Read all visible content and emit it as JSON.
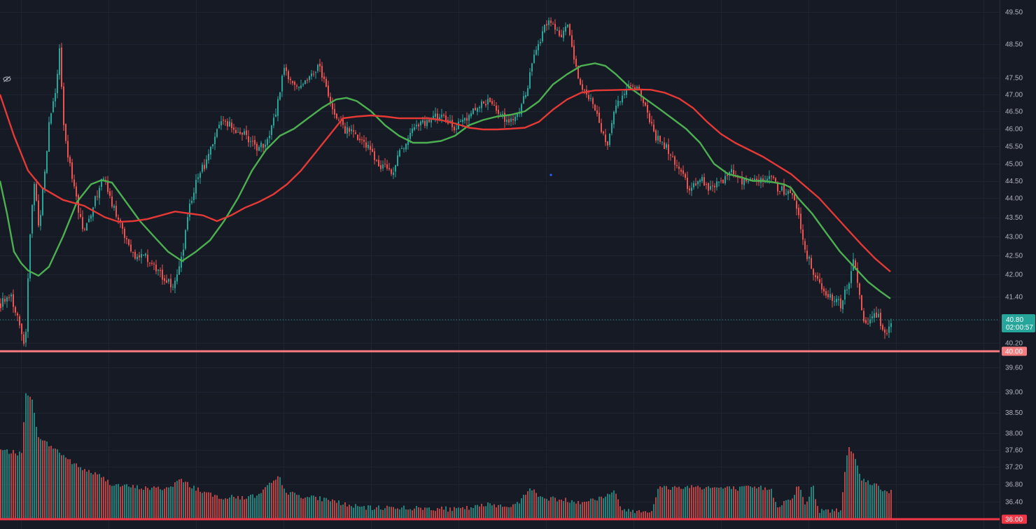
{
  "chart_data": {
    "type": "candlestick",
    "price_axis": {
      "tick_labels": [
        "49.50",
        "48.50",
        "47.50",
        "47.00",
        "46.50",
        "46.00",
        "45.50",
        "45.00",
        "44.50",
        "44.00",
        "43.50",
        "43.00",
        "42.50",
        "42.00",
        "41.40",
        "40.80",
        "40.20",
        "39.60",
        "39.00",
        "38.50",
        "38.00",
        "37.60",
        "37.20",
        "36.80",
        "36.40",
        "36.00"
      ],
      "ylim": [
        35.85,
        49.6
      ]
    },
    "last_price": {
      "value": "40.80",
      "countdown": "02:00:57",
      "color": "#26a69a"
    },
    "horizontal_lines": [
      {
        "value": 40.0,
        "label": "40.00",
        "color": "#f77c80"
      },
      {
        "value": 36.0,
        "label": "36.00",
        "color": "#f23645"
      }
    ],
    "price_path": [
      [
        0,
        41.2
      ],
      [
        15,
        41.4
      ],
      [
        30,
        40.4
      ],
      [
        35,
        40.05
      ],
      [
        40,
        42.5
      ],
      [
        48,
        44.5
      ],
      [
        55,
        43.2
      ],
      [
        70,
        46.3
      ],
      [
        78,
        47.0
      ],
      [
        84,
        48.3
      ],
      [
        90,
        46.0
      ],
      [
        100,
        44.8
      ],
      [
        110,
        43.8
      ],
      [
        120,
        43.1
      ],
      [
        130,
        43.6
      ],
      [
        140,
        44.3
      ],
      [
        148,
        44.6
      ],
      [
        158,
        43.8
      ],
      [
        170,
        43.5
      ],
      [
        180,
        42.8
      ],
      [
        192,
        42.4
      ],
      [
        205,
        42.6
      ],
      [
        215,
        42.3
      ],
      [
        228,
        42.0
      ],
      [
        240,
        41.8
      ],
      [
        250,
        41.7
      ],
      [
        260,
        42.6
      ],
      [
        270,
        43.8
      ],
      [
        280,
        44.6
      ],
      [
        292,
        45.0
      ],
      [
        305,
        45.8
      ],
      [
        318,
        46.2
      ],
      [
        335,
        46.0
      ],
      [
        350,
        45.8
      ],
      [
        365,
        45.4
      ],
      [
        380,
        45.6
      ],
      [
        392,
        46.4
      ],
      [
        405,
        47.8
      ],
      [
        418,
        47.3
      ],
      [
        430,
        47.2
      ],
      [
        445,
        47.6
      ],
      [
        455,
        47.9
      ],
      [
        465,
        47.2
      ],
      [
        478,
        46.4
      ],
      [
        490,
        46.0
      ],
      [
        505,
        45.9
      ],
      [
        520,
        45.6
      ],
      [
        540,
        45.0
      ],
      [
        560,
        44.8
      ],
      [
        575,
        45.5
      ],
      [
        590,
        46.1
      ],
      [
        610,
        46.2
      ],
      [
        630,
        46.4
      ],
      [
        650,
        46.0
      ],
      [
        665,
        46.3
      ],
      [
        680,
        46.6
      ],
      [
        695,
        46.8
      ],
      [
        710,
        46.5
      ],
      [
        725,
        46.1
      ],
      [
        740,
        46.4
      ],
      [
        752,
        47.2
      ],
      [
        760,
        48.0
      ],
      [
        770,
        48.6
      ],
      [
        780,
        49.2
      ],
      [
        792,
        49.0
      ],
      [
        800,
        48.6
      ],
      [
        808,
        49.2
      ],
      [
        815,
        48.5
      ],
      [
        825,
        47.6
      ],
      [
        835,
        47.0
      ],
      [
        845,
        46.8
      ],
      [
        857,
        46.0
      ],
      [
        867,
        45.6
      ],
      [
        878,
        46.7
      ],
      [
        890,
        47.0
      ],
      [
        902,
        47.3
      ],
      [
        912,
        47.1
      ],
      [
        925,
        46.3
      ],
      [
        935,
        45.8
      ],
      [
        945,
        45.6
      ],
      [
        957,
        45.3
      ],
      [
        970,
        44.8
      ],
      [
        985,
        44.2
      ],
      [
        1000,
        44.6
      ],
      [
        1015,
        44.2
      ],
      [
        1030,
        44.5
      ],
      [
        1045,
        44.8
      ],
      [
        1060,
        44.5
      ],
      [
        1075,
        44.6
      ],
      [
        1090,
        44.5
      ],
      [
        1100,
        44.7
      ],
      [
        1110,
        44.3
      ],
      [
        1120,
        44.2
      ],
      [
        1130,
        44.1
      ],
      [
        1140,
        43.5
      ],
      [
        1150,
        42.6
      ],
      [
        1160,
        42.1
      ],
      [
        1170,
        41.8
      ],
      [
        1180,
        41.5
      ],
      [
        1190,
        41.3
      ],
      [
        1200,
        41.2
      ],
      [
        1210,
        41.7
      ],
      [
        1218,
        42.4
      ],
      [
        1225,
        41.6
      ],
      [
        1232,
        40.9
      ],
      [
        1240,
        40.6
      ],
      [
        1250,
        41.0
      ],
      [
        1258,
        40.7
      ],
      [
        1265,
        40.5
      ],
      [
        1272,
        40.8
      ]
    ],
    "series": [
      {
        "color": "#4caf50",
        "points": [
          [
            0,
            44.5
          ],
          [
            10,
            43.6
          ],
          [
            20,
            42.6
          ],
          [
            30,
            42.3
          ],
          [
            40,
            42.1
          ],
          [
            55,
            41.96
          ],
          [
            70,
            42.2
          ],
          [
            90,
            43.0
          ],
          [
            110,
            43.9
          ],
          [
            130,
            44.4
          ],
          [
            145,
            44.52
          ],
          [
            160,
            44.45
          ],
          [
            180,
            43.9
          ],
          [
            200,
            43.4
          ],
          [
            220,
            43.0
          ],
          [
            240,
            42.6
          ],
          [
            260,
            42.35
          ],
          [
            280,
            42.6
          ],
          [
            300,
            42.9
          ],
          [
            320,
            43.4
          ],
          [
            340,
            44.0
          ],
          [
            360,
            44.8
          ],
          [
            380,
            45.4
          ],
          [
            400,
            45.8
          ],
          [
            420,
            46.0
          ],
          [
            440,
            46.3
          ],
          [
            460,
            46.6
          ],
          [
            480,
            46.85
          ],
          [
            495,
            46.9
          ],
          [
            510,
            46.8
          ],
          [
            530,
            46.5
          ],
          [
            550,
            46.1
          ],
          [
            570,
            45.8
          ],
          [
            590,
            45.6
          ],
          [
            610,
            45.6
          ],
          [
            630,
            45.65
          ],
          [
            650,
            45.8
          ],
          [
            670,
            46.1
          ],
          [
            690,
            46.25
          ],
          [
            710,
            46.35
          ],
          [
            730,
            46.4
          ],
          [
            750,
            46.5
          ],
          [
            770,
            46.8
          ],
          [
            790,
            47.3
          ],
          [
            810,
            47.6
          ],
          [
            830,
            47.85
          ],
          [
            850,
            47.93
          ],
          [
            865,
            47.85
          ],
          [
            880,
            47.6
          ],
          [
            900,
            47.2
          ],
          [
            920,
            46.9
          ],
          [
            940,
            46.6
          ],
          [
            960,
            46.3
          ],
          [
            980,
            46.0
          ],
          [
            1000,
            45.6
          ],
          [
            1020,
            45.0
          ],
          [
            1040,
            44.7
          ],
          [
            1060,
            44.6
          ],
          [
            1075,
            44.5
          ],
          [
            1090,
            44.5
          ],
          [
            1105,
            44.46
          ],
          [
            1120,
            44.4
          ],
          [
            1130,
            44.3
          ],
          [
            1140,
            44.0
          ],
          [
            1160,
            43.6
          ],
          [
            1180,
            43.1
          ],
          [
            1200,
            42.6
          ],
          [
            1220,
            42.2
          ],
          [
            1240,
            41.8
          ],
          [
            1257,
            41.55
          ],
          [
            1272,
            41.35
          ]
        ]
      },
      {
        "color": "#e53935",
        "points": [
          [
            0,
            47.0
          ],
          [
            20,
            45.8
          ],
          [
            40,
            44.8
          ],
          [
            60,
            44.3
          ],
          [
            90,
            43.95
          ],
          [
            120,
            43.8
          ],
          [
            150,
            43.5
          ],
          [
            170,
            43.38
          ],
          [
            190,
            43.4
          ],
          [
            210,
            43.45
          ],
          [
            230,
            43.55
          ],
          [
            250,
            43.65
          ],
          [
            270,
            43.6
          ],
          [
            290,
            43.55
          ],
          [
            310,
            43.4
          ],
          [
            330,
            43.55
          ],
          [
            350,
            43.75
          ],
          [
            370,
            43.9
          ],
          [
            390,
            44.1
          ],
          [
            410,
            44.4
          ],
          [
            430,
            44.8
          ],
          [
            450,
            45.3
          ],
          [
            470,
            45.8
          ],
          [
            490,
            46.3
          ],
          [
            510,
            46.35
          ],
          [
            530,
            46.38
          ],
          [
            550,
            46.35
          ],
          [
            570,
            46.3
          ],
          [
            590,
            46.3
          ],
          [
            610,
            46.3
          ],
          [
            630,
            46.25
          ],
          [
            650,
            46.15
          ],
          [
            670,
            46.03
          ],
          [
            690,
            45.98
          ],
          [
            710,
            45.98
          ],
          [
            730,
            46.0
          ],
          [
            750,
            46.03
          ],
          [
            770,
            46.2
          ],
          [
            790,
            46.55
          ],
          [
            810,
            46.85
          ],
          [
            830,
            47.05
          ],
          [
            850,
            47.12
          ],
          [
            870,
            47.13
          ],
          [
            890,
            47.14
          ],
          [
            910,
            47.15
          ],
          [
            930,
            47.14
          ],
          [
            950,
            47.05
          ],
          [
            970,
            46.88
          ],
          [
            990,
            46.6
          ],
          [
            1010,
            46.2
          ],
          [
            1030,
            45.85
          ],
          [
            1050,
            45.6
          ],
          [
            1070,
            45.4
          ],
          [
            1090,
            45.2
          ],
          [
            1110,
            44.95
          ],
          [
            1130,
            44.7
          ],
          [
            1150,
            44.35
          ],
          [
            1170,
            44.0
          ],
          [
            1190,
            43.6
          ],
          [
            1210,
            43.2
          ],
          [
            1230,
            42.8
          ],
          [
            1250,
            42.42
          ],
          [
            1272,
            42.07
          ]
        ]
      }
    ],
    "volume_path": [
      [
        0,
        37.6
      ],
      [
        30,
        37.5
      ],
      [
        36,
        39.0
      ],
      [
        44,
        38.9
      ],
      [
        52,
        38.0
      ],
      [
        62,
        37.8
      ],
      [
        80,
        37.6
      ],
      [
        95,
        37.4
      ],
      [
        110,
        37.2
      ],
      [
        125,
        37.1
      ],
      [
        140,
        37.0
      ],
      [
        160,
        36.8
      ],
      [
        180,
        36.75
      ],
      [
        200,
        36.72
      ],
      [
        220,
        36.7
      ],
      [
        240,
        36.72
      ],
      [
        255,
        36.9
      ],
      [
        270,
        36.78
      ],
      [
        300,
        36.55
      ],
      [
        320,
        36.5
      ],
      [
        350,
        36.5
      ],
      [
        370,
        36.55
      ],
      [
        385,
        36.8
      ],
      [
        398,
        36.95
      ],
      [
        410,
        36.6
      ],
      [
        440,
        36.5
      ],
      [
        470,
        36.45
      ],
      [
        500,
        36.3
      ],
      [
        530,
        36.25
      ],
      [
        560,
        36.28
      ],
      [
        590,
        36.25
      ],
      [
        620,
        36.25
      ],
      [
        650,
        36.22
      ],
      [
        680,
        36.28
      ],
      [
        700,
        36.35
      ],
      [
        720,
        36.3
      ],
      [
        740,
        36.35
      ],
      [
        755,
        36.75
      ],
      [
        770,
        36.5
      ],
      [
        800,
        36.45
      ],
      [
        830,
        36.4
      ],
      [
        860,
        36.5
      ],
      [
        875,
        36.65
      ],
      [
        890,
        36.2
      ],
      [
        930,
        36.2
      ],
      [
        940,
        36.72
      ],
      [
        960,
        36.72
      ],
      [
        990,
        36.75
      ],
      [
        1020,
        36.72
      ],
      [
        1050,
        36.7
      ],
      [
        1080,
        36.72
      ],
      [
        1100,
        36.7
      ],
      [
        1110,
        36.3
      ],
      [
        1130,
        36.5
      ],
      [
        1140,
        36.78
      ],
      [
        1150,
        36.3
      ],
      [
        1160,
        36.8
      ],
      [
        1168,
        36.2
      ],
      [
        1200,
        36.2
      ],
      [
        1210,
        37.68
      ],
      [
        1220,
        37.5
      ],
      [
        1230,
        36.9
      ],
      [
        1250,
        36.8
      ],
      [
        1262,
        36.65
      ],
      [
        1272,
        36.65
      ]
    ]
  }
}
